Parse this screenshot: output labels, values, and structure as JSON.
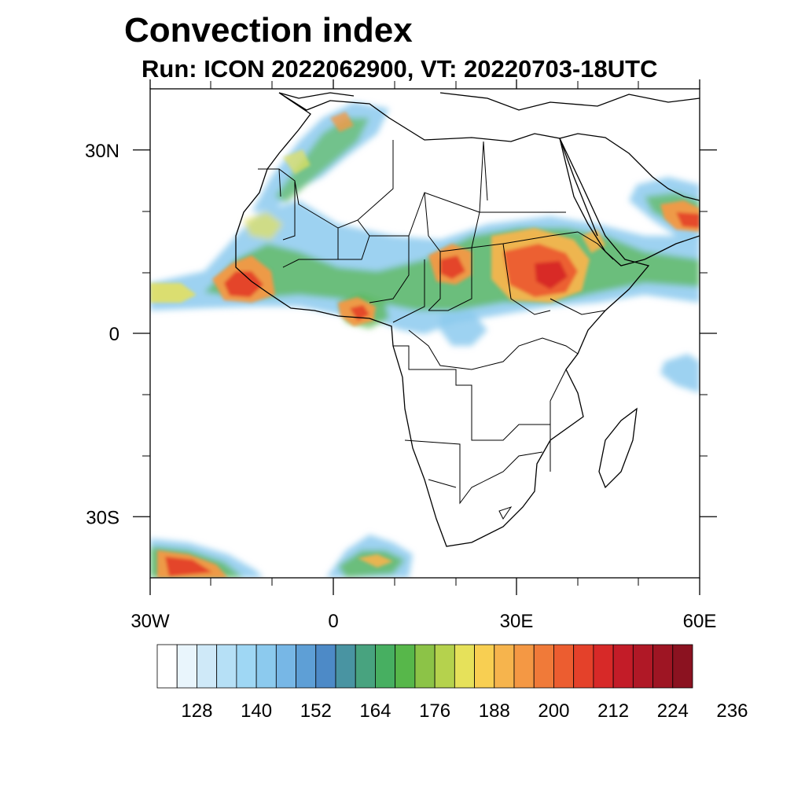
{
  "title": "Convection index",
  "subtitle": "Run: ICON 2022062900,  VT: 20220703-18UTC",
  "map": {
    "lon_range": [
      -30,
      60
    ],
    "lat_range": [
      -40,
      40
    ],
    "lon_ticks": [
      {
        "value": -30,
        "label": "30W"
      },
      {
        "value": 0,
        "label": "0"
      },
      {
        "value": 30,
        "label": "30E"
      },
      {
        "value": 60,
        "label": "60E"
      }
    ],
    "lat_ticks": [
      {
        "value": 30,
        "label": "30N"
      },
      {
        "value": 0,
        "label": "0"
      },
      {
        "value": -30,
        "label": "30S"
      }
    ]
  },
  "colorbar": {
    "colors": [
      "#ffffff",
      "#e9f5fc",
      "#cfe9f8",
      "#b6e0f6",
      "#9fd7f4",
      "#8ccaee",
      "#77b7e6",
      "#5e9fd6",
      "#4d8ac7",
      "#4994a2",
      "#48a37f",
      "#47af61",
      "#57b74a",
      "#8cc347",
      "#b5d24d",
      "#e6e15a",
      "#f8cf52",
      "#f6b44d",
      "#f49844",
      "#f07a39",
      "#ec5d30",
      "#e4412a",
      "#d72928",
      "#c31c28",
      "#b01826",
      "#9e1523",
      "#8b1220"
    ],
    "labels": [
      "128",
      "140",
      "152",
      "164",
      "176",
      "188",
      "200",
      "212",
      "224",
      "236"
    ]
  }
}
